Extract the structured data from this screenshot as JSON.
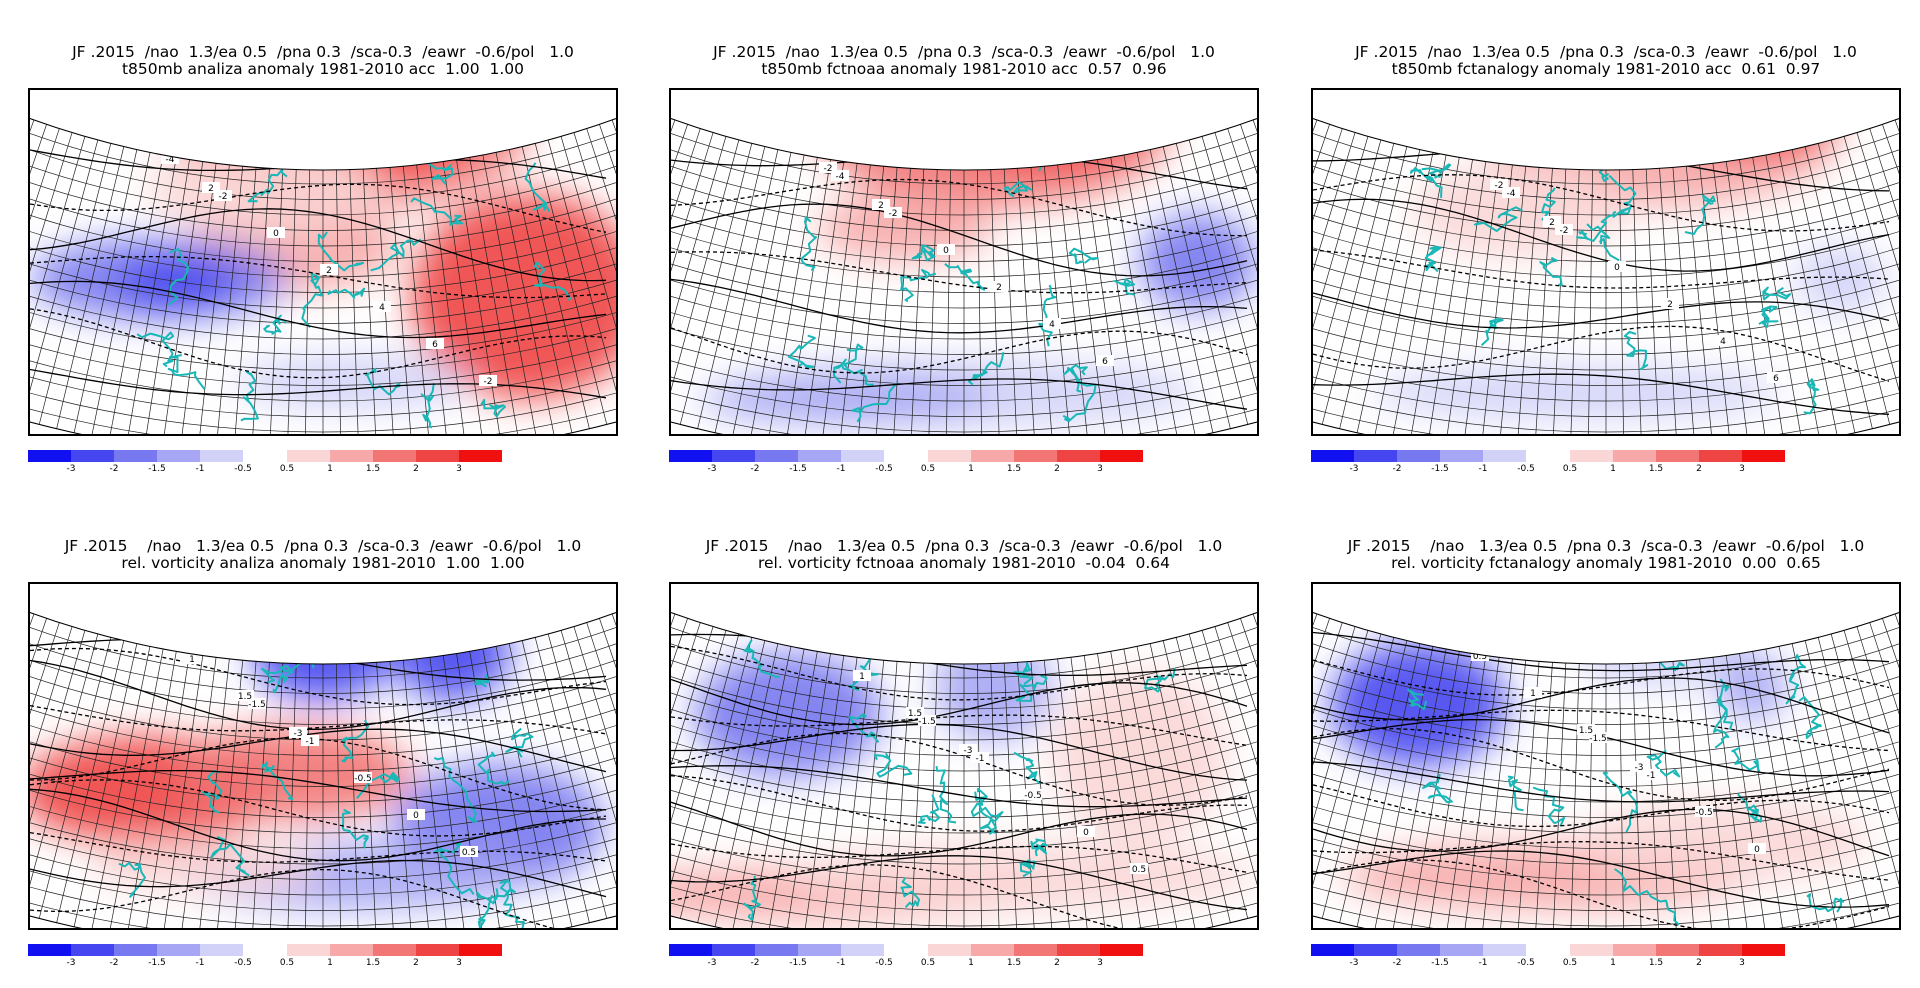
{
  "panels": [
    {
      "title1": "JF .2015  /nao  1.3/ea 0.5  /pna 0.3  /sca-0.3  /eawr  -0.6/pol   1.0",
      "title2": "t850mb analiza anomaly 1981-2010 acc  1.00  1.00",
      "field": "temperature"
    },
    {
      "title1": "JF .2015  /nao  1.3/ea 0.5  /pna 0.3  /sca-0.3  /eawr  -0.6/pol   1.0",
      "title2": "t850mb fctnoaa anomaly 1981-2010 acc  0.57  0.96",
      "field": "temperature"
    },
    {
      "title1": "JF .2015  /nao  1.3/ea 0.5  /pna 0.3  /sca-0.3  /eawr  -0.6/pol   1.0",
      "title2": "t850mb fctanalogy anomaly 1981-2010 acc  0.61  0.97",
      "field": "temperature"
    },
    {
      "title1": "JF .2015    /nao   1.3/ea 0.5  /pna 0.3  /sca-0.3  /eawr  -0.6/pol   1.0",
      "title2": "rel. vorticity analiza anomaly 1981-2010  1.00  1.00",
      "field": "vorticity"
    },
    {
      "title1": "JF .2015    /nao   1.3/ea 0.5  /pna 0.3  /sca-0.3  /eawr  -0.6/pol   1.0",
      "title2": "rel. vorticity fctnoaa anomaly 1981-2010  -0.04  0.64",
      "field": "vorticity"
    },
    {
      "title1": "JF .2015    /nao   1.3/ea 0.5  /pna 0.3  /sca-0.3  /eawr  -0.6/pol   1.0",
      "title2": "rel. vorticity fctanalogy anomaly 1981-2010  0.00  0.65",
      "field": "vorticity"
    }
  ],
  "colorbar": {
    "negative_ticks": [
      "-3",
      "-2",
      "-1.5",
      "-1",
      "-0.5"
    ],
    "positive_ticks": [
      "0.5",
      "1",
      "1.5",
      "2",
      "3"
    ],
    "negative_colors": [
      "#1010f0",
      "#4646f0",
      "#7878f0",
      "#a6a6f4",
      "#d2d2f8"
    ],
    "positive_colors": [
      "#fbd6d6",
      "#f7a8a8",
      "#f27676",
      "#ee4444",
      "#f01010"
    ]
  },
  "contour_labels": {
    "temperature": [
      "-4",
      "-2",
      "0",
      "2",
      "4",
      "6",
      "-2",
      "2"
    ],
    "vorticity": [
      "-1.5",
      "-1",
      "-0.5",
      "0",
      "0.5",
      "1",
      "1.5",
      "-3"
    ]
  },
  "colors": {
    "coastline": "#1ab7b7",
    "contour": "#000000"
  }
}
